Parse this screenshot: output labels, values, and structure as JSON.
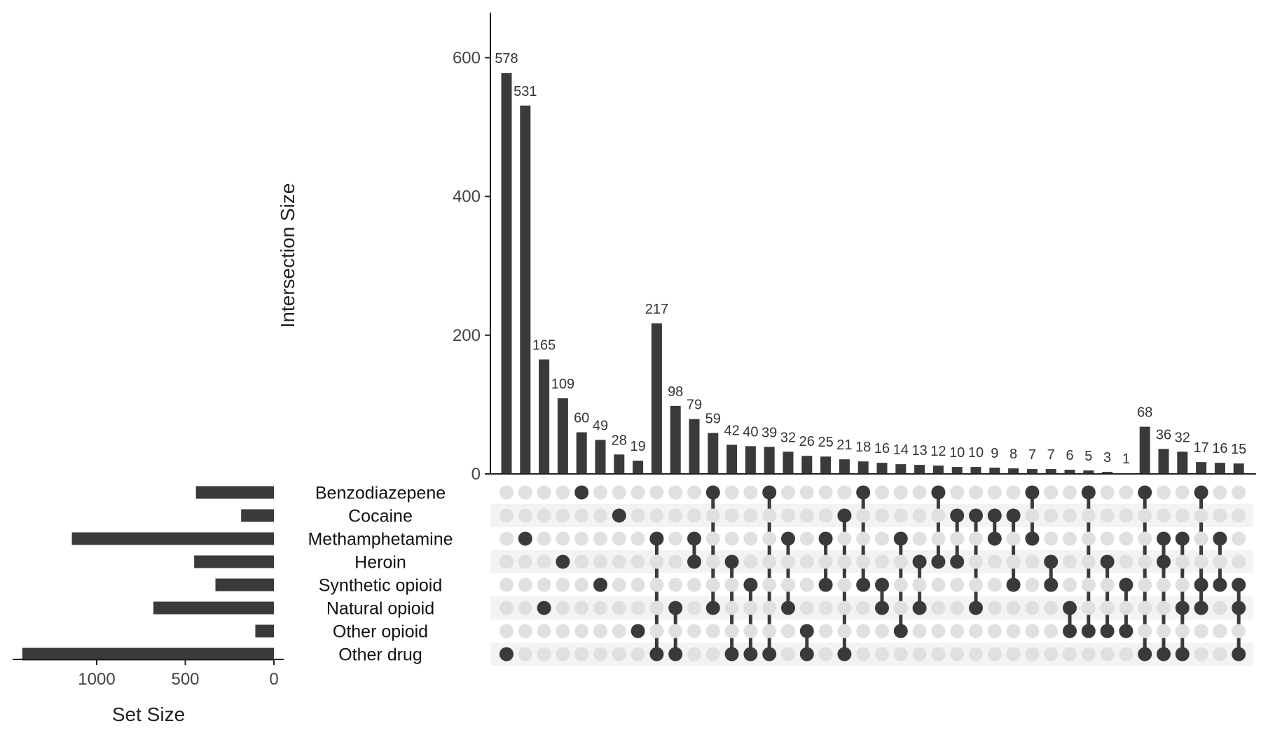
{
  "chart_data": {
    "type": "upset",
    "y_axis_label": "Intersection Size",
    "y_ticks": [
      0,
      200,
      400,
      600
    ],
    "ylim": [
      0,
      665
    ],
    "set_size_label": "Set Size",
    "set_size_ticks": [
      1000,
      500,
      0
    ],
    "sets": [
      {
        "name": "Benzodiazepene",
        "size": 440
      },
      {
        "name": "Cocaine",
        "size": 185
      },
      {
        "name": "Methamphetamine",
        "size": 1140
      },
      {
        "name": "Heroin",
        "size": 450
      },
      {
        "name": "Synthetic opioid",
        "size": 330
      },
      {
        "name": "Natural opioid",
        "size": 680
      },
      {
        "name": "Other opioid",
        "size": 105
      },
      {
        "name": "Other drug",
        "size": 1420
      }
    ],
    "intersections": [
      {
        "value": 578,
        "sets": [
          7
        ]
      },
      {
        "value": 531,
        "sets": [
          2
        ]
      },
      {
        "value": 165,
        "sets": [
          5
        ]
      },
      {
        "value": 109,
        "sets": [
          3
        ]
      },
      {
        "value": 60,
        "sets": [
          0
        ]
      },
      {
        "value": 49,
        "sets": [
          4
        ]
      },
      {
        "value": 28,
        "sets": [
          1
        ]
      },
      {
        "value": 19,
        "sets": [
          6
        ]
      },
      {
        "value": 217,
        "sets": [
          2,
          7
        ]
      },
      {
        "value": 98,
        "sets": [
          5,
          7
        ]
      },
      {
        "value": 79,
        "sets": [
          2,
          3
        ]
      },
      {
        "value": 59,
        "sets": [
          0,
          5
        ]
      },
      {
        "value": 42,
        "sets": [
          3,
          7
        ]
      },
      {
        "value": 40,
        "sets": [
          4,
          7
        ]
      },
      {
        "value": 39,
        "sets": [
          0,
          7
        ]
      },
      {
        "value": 32,
        "sets": [
          2,
          5
        ]
      },
      {
        "value": 26,
        "sets": [
          6,
          7
        ]
      },
      {
        "value": 25,
        "sets": [
          2,
          4
        ]
      },
      {
        "value": 21,
        "sets": [
          1,
          7
        ]
      },
      {
        "value": 18,
        "sets": [
          0,
          4
        ]
      },
      {
        "value": 16,
        "sets": [
          4,
          5
        ]
      },
      {
        "value": 14,
        "sets": [
          2,
          6
        ]
      },
      {
        "value": 13,
        "sets": [
          3,
          5
        ]
      },
      {
        "value": 12,
        "sets": [
          0,
          3
        ]
      },
      {
        "value": 10,
        "sets": [
          1,
          3
        ]
      },
      {
        "value": 10,
        "sets": [
          1,
          5
        ]
      },
      {
        "value": 9,
        "sets": [
          1,
          2
        ]
      },
      {
        "value": 8,
        "sets": [
          1,
          4
        ]
      },
      {
        "value": 7,
        "sets": [
          0,
          2
        ]
      },
      {
        "value": 7,
        "sets": [
          3,
          4
        ]
      },
      {
        "value": 6,
        "sets": [
          5,
          6
        ]
      },
      {
        "value": 5,
        "sets": [
          0,
          6
        ]
      },
      {
        "value": 3,
        "sets": [
          3,
          6
        ]
      },
      {
        "value": 1,
        "sets": [
          4,
          6
        ]
      },
      {
        "value": 68,
        "sets": [
          0,
          7
        ]
      },
      {
        "value": 36,
        "sets": [
          2,
          3,
          7
        ]
      },
      {
        "value": 32,
        "sets": [
          2,
          5,
          7
        ]
      },
      {
        "value": 17,
        "sets": [
          0,
          4,
          5
        ]
      },
      {
        "value": 16,
        "sets": [
          2,
          4
        ]
      },
      {
        "value": 15,
        "sets": [
          4,
          5,
          7
        ]
      }
    ]
  },
  "colors": {
    "bar": "#3a3a3a",
    "dot_active": "#3a3a3a",
    "dot_inactive": "#e0e0e0",
    "stripe": "#f3f3f3",
    "text": "#222222",
    "axis": "#222222"
  }
}
